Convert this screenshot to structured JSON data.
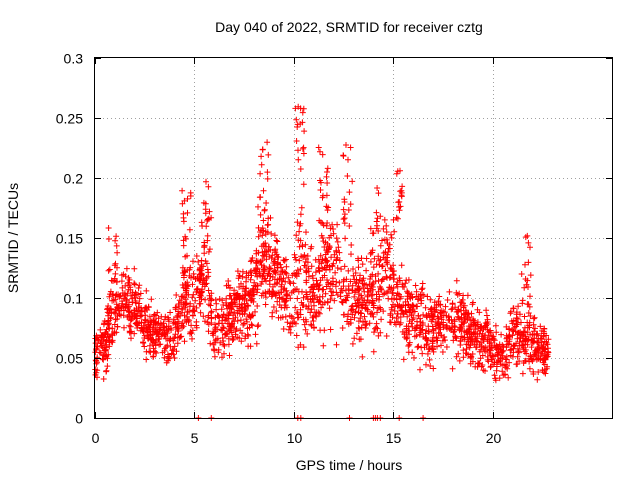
{
  "chart_data": {
    "type": "scatter",
    "title": "Day 040 of 2022, SRMTID for receiver cztg",
    "xlabel": "GPS time / hours",
    "ylabel": "SRMTID / TECUs",
    "xlim": [
      0,
      26
    ],
    "ylim": [
      0,
      0.3
    ],
    "xticks": [
      0,
      5,
      10,
      15,
      20
    ],
    "xtick_labels": [
      "0",
      "5",
      "10",
      "15",
      "20"
    ],
    "yticks": [
      0,
      0.05,
      0.1,
      0.15,
      0.2,
      0.25,
      0.3
    ],
    "ytick_labels": [
      "0",
      "0.05",
      "0.1",
      "0.15",
      "0.2",
      "0.25",
      "0.3"
    ],
    "grid": true,
    "marker": "+",
    "marker_color": "#ff0000",
    "data_range_hours": [
      0,
      22.8
    ],
    "zero_value_times": [
      5.2,
      5.85,
      10.2,
      10.35,
      12.8,
      14.0,
      14.1,
      14.2,
      14.35,
      15.3,
      16.5
    ],
    "envelope": {
      "x": [
        0,
        0.5,
        1,
        1.5,
        2,
        3,
        4,
        4.5,
        5,
        5.5,
        6,
        6.5,
        7,
        7.5,
        8,
        8.3,
        8.5,
        9,
        9.5,
        10,
        10.3,
        10.5,
        11,
        11.5,
        12,
        12.5,
        13,
        13.5,
        14,
        14.5,
        15,
        15.5,
        16,
        16.5,
        17,
        17.5,
        18,
        19,
        20,
        20.5,
        21,
        21.5,
        22,
        22.8
      ],
      "center": [
        0.05,
        0.06,
        0.09,
        0.1,
        0.09,
        0.07,
        0.07,
        0.1,
        0.1,
        0.12,
        0.07,
        0.08,
        0.09,
        0.1,
        0.1,
        0.14,
        0.13,
        0.12,
        0.11,
        0.1,
        0.13,
        0.11,
        0.1,
        0.12,
        0.13,
        0.1,
        0.1,
        0.1,
        0.1,
        0.12,
        0.11,
        0.09,
        0.08,
        0.08,
        0.07,
        0.08,
        0.08,
        0.07,
        0.06,
        0.05,
        0.07,
        0.07,
        0.06,
        0.055
      ],
      "spread": [
        0.025,
        0.03,
        0.04,
        0.04,
        0.035,
        0.03,
        0.03,
        0.045,
        0.04,
        0.05,
        0.03,
        0.035,
        0.035,
        0.04,
        0.045,
        0.06,
        0.05,
        0.05,
        0.045,
        0.05,
        0.09,
        0.05,
        0.045,
        0.06,
        0.07,
        0.05,
        0.05,
        0.05,
        0.05,
        0.06,
        0.05,
        0.045,
        0.04,
        0.04,
        0.035,
        0.04,
        0.04,
        0.035,
        0.03,
        0.03,
        0.035,
        0.04,
        0.035,
        0.02
      ],
      "peak_max": [
        {
          "x": 10.3,
          "y": 0.26
        },
        {
          "x": 12.7,
          "y": 0.23
        },
        {
          "x": 8.5,
          "y": 0.23
        },
        {
          "x": 11.5,
          "y": 0.227
        },
        {
          "x": 15.2,
          "y": 0.207
        },
        {
          "x": 5.6,
          "y": 0.198
        },
        {
          "x": 4.6,
          "y": 0.19
        },
        {
          "x": 14.1,
          "y": 0.195
        },
        {
          "x": 0.9,
          "y": 0.16
        },
        {
          "x": 21.7,
          "y": 0.153
        }
      ]
    }
  }
}
